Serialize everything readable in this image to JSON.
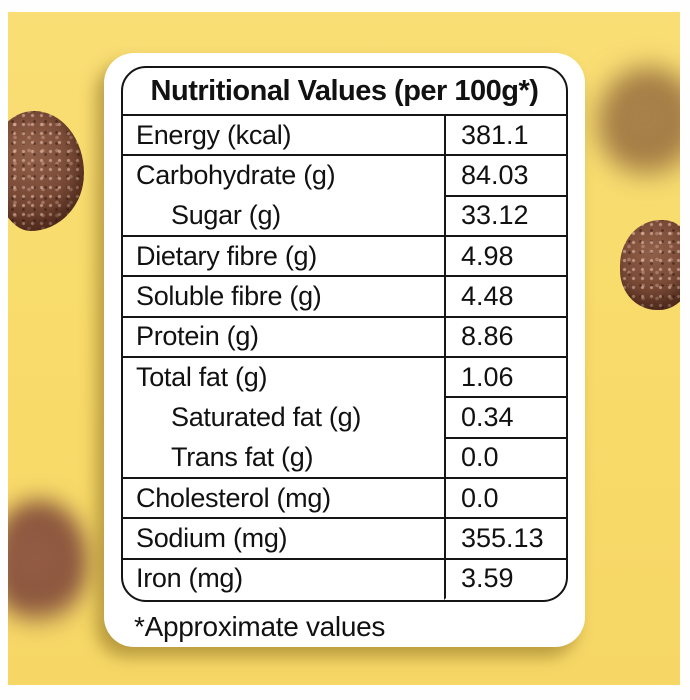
{
  "header": {
    "title": "Nutritional Values (per 100g*)"
  },
  "table": {
    "rows": [
      {
        "label": "Energy (kcal)",
        "value": "381.1",
        "indent": false,
        "divider": "full"
      },
      {
        "label": "Carbohydrate (g)",
        "value": "84.03",
        "indent": false,
        "divider": "right-only"
      },
      {
        "label": "Sugar (g)",
        "value": "33.12",
        "indent": true,
        "divider": "full"
      },
      {
        "label": "Dietary fibre (g)",
        "value": "4.98",
        "indent": false,
        "divider": "full"
      },
      {
        "label": "Soluble fibre (g)",
        "value": "4.48",
        "indent": false,
        "divider": "full"
      },
      {
        "label": "Protein (g)",
        "value": "8.86",
        "indent": false,
        "divider": "full"
      },
      {
        "label": "Total fat (g)",
        "value": "1.06",
        "indent": false,
        "divider": "right-only"
      },
      {
        "label": "Saturated fat (g)",
        "value": "0.34",
        "indent": true,
        "divider": "right-only"
      },
      {
        "label": "Trans fat (g)",
        "value": "0.0",
        "indent": true,
        "divider": "full"
      },
      {
        "label": "Cholesterol (mg)",
        "value": "0.0",
        "indent": false,
        "divider": "full"
      },
      {
        "label": "Sodium (mg)",
        "value": "355.13",
        "indent": false,
        "divider": "full"
      },
      {
        "label": "Iron (mg)",
        "value": "3.59",
        "indent": false,
        "divider": "none"
      }
    ]
  },
  "footnote": "*Approximate values",
  "colors": {
    "background_yellow": "#F8DB6A",
    "photo_margin": "#FFFFFF",
    "card": "#FFFFFF",
    "table_border": "#151515",
    "text": "#111111",
    "chocolate": "#7A4B37"
  }
}
